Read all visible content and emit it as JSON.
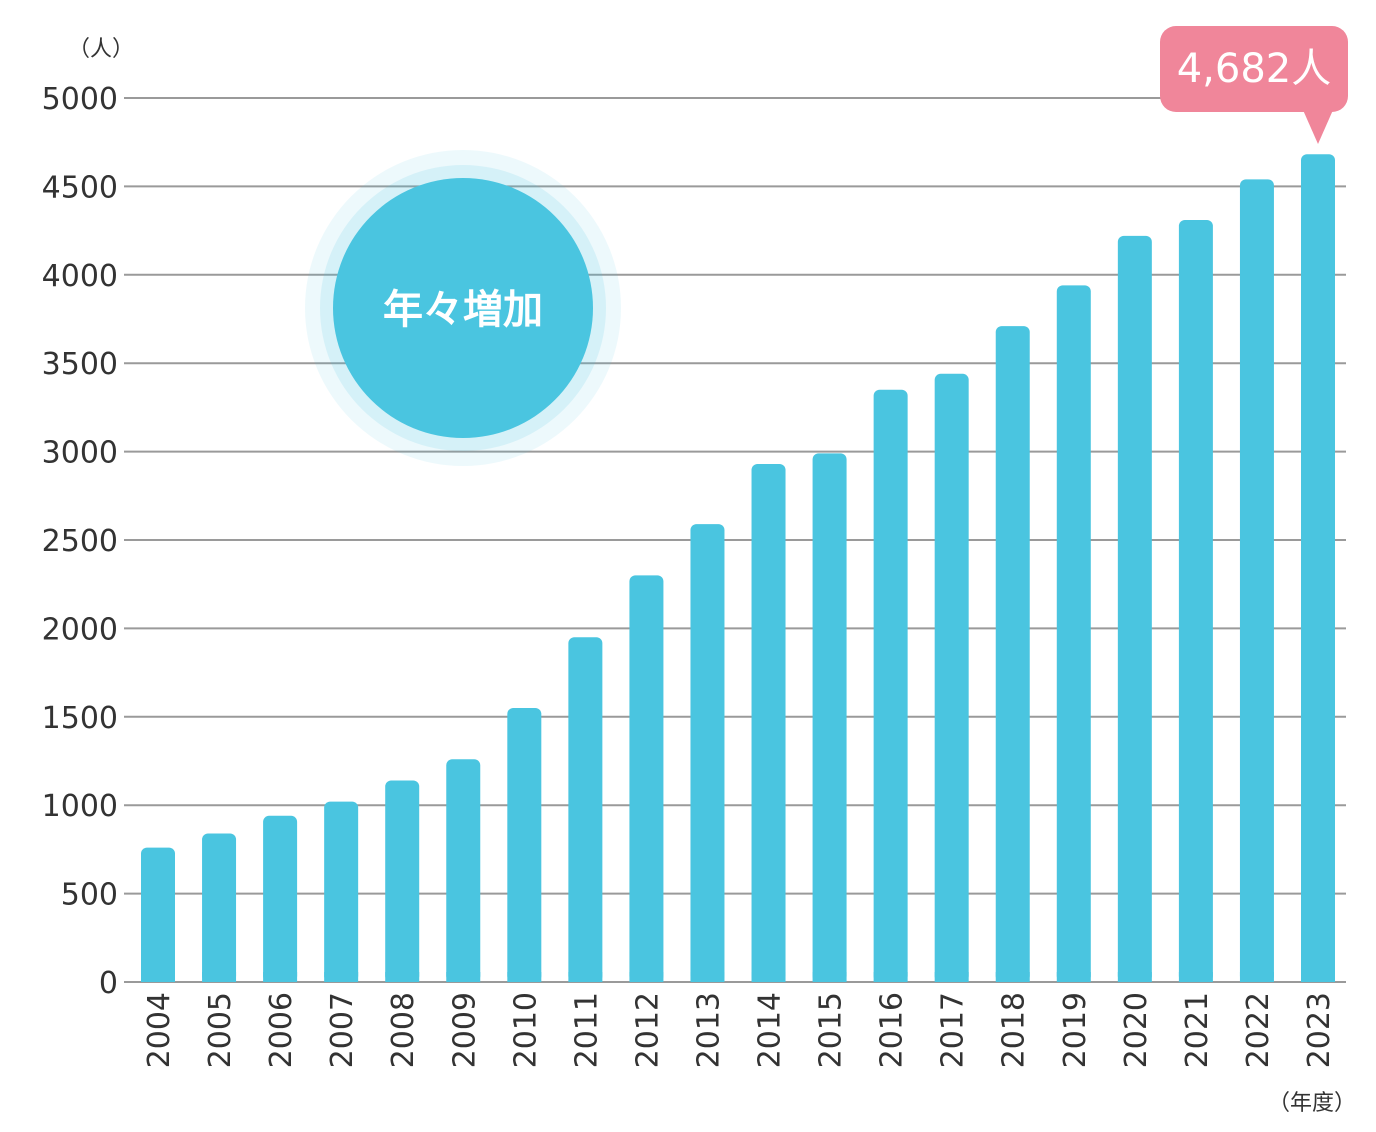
{
  "chart_data": {
    "type": "bar",
    "y_unit": "（人）",
    "x_unit": "（年度）",
    "ylim": [
      0,
      5000
    ],
    "yticks": [
      0,
      500,
      1000,
      1500,
      2000,
      2500,
      3000,
      3500,
      4000,
      4500,
      5000
    ],
    "grid": true,
    "categories": [
      "2004",
      "2005",
      "2006",
      "2007",
      "2008",
      "2009",
      "2010",
      "2011",
      "2012",
      "2013",
      "2014",
      "2015",
      "2016",
      "2017",
      "2018",
      "2019",
      "2020",
      "2021",
      "2022",
      "2023"
    ],
    "values": [
      760,
      840,
      940,
      1020,
      1140,
      1260,
      1550,
      1950,
      2300,
      2590,
      2930,
      2990,
      3350,
      3440,
      3710,
      3940,
      4220,
      4310,
      4540,
      4682
    ],
    "callout": "4,682人",
    "badge": "年々増加",
    "colors": {
      "bar": "#4ac5e0",
      "callout": "#f0869a",
      "grid": "#9a9a9a",
      "badge": "#4ac5e0"
    }
  }
}
